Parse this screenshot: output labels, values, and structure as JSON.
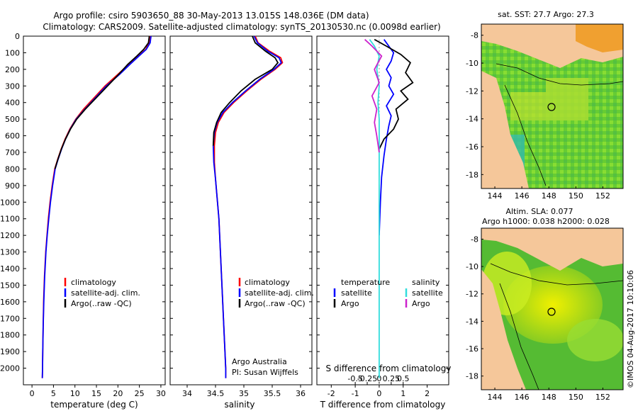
{
  "header": {
    "line1": "Argo profile: csiro 5903650_88 30-May-2013 13.015S 148.036E (DM data)",
    "line2": "Climatology: CARS2009. Satellite-adjusted climatology: synTS_20130530.nc (0.0098d earlier)"
  },
  "colors": {
    "climatology": "#ff0000",
    "satellite": "#0000ff",
    "argo": "#000000",
    "satellite_s": "#33dddd",
    "argo_s": "#cc22cc",
    "land": "#f5c79a"
  },
  "chart_data": [
    {
      "type": "line",
      "name": "temperature-panel",
      "xlabel": "temperature (deg C)",
      "ylabel": "",
      "xlim": [
        -2,
        31
      ],
      "ylim": [
        2100,
        0
      ],
      "xticks": [
        "0",
        "5",
        "10",
        "15",
        "20",
        "25",
        "30"
      ],
      "yticks": [
        "0",
        "100",
        "200",
        "300",
        "400",
        "500",
        "600",
        "700",
        "800",
        "900",
        "1000",
        "1100",
        "1200",
        "1300",
        "1400",
        "1500",
        "1600",
        "1700",
        "1800",
        "1900",
        "2000"
      ],
      "legend": [
        "climatology",
        "satellite-adj. clim.",
        "Argo(..raw -QC)"
      ],
      "series": [
        {
          "name": "climatology",
          "color": "climatology",
          "x": [
            27.5,
            27.2,
            26.5,
            24.8,
            22.5,
            20,
            17,
            14.5,
            12,
            10.2,
            8.8,
            7.7,
            6.8,
            6,
            5.3,
            4.7,
            4.2,
            3.8,
            3.5,
            3.2,
            2.9,
            2.7,
            2.6,
            2.5,
            2.45,
            2.4
          ],
          "y": [
            0,
            40,
            80,
            120,
            170,
            230,
            300,
            370,
            440,
            500,
            560,
            620,
            680,
            740,
            800,
            900,
            1000,
            1100,
            1200,
            1300,
            1450,
            1600,
            1750,
            1900,
            2000,
            2060
          ]
        },
        {
          "name": "satellite-adj. clim.",
          "color": "satellite",
          "x": [
            27.7,
            27.5,
            26.6,
            24.9,
            22.8,
            20.4,
            17.3,
            14.8,
            12.3,
            10.3,
            8.9,
            7.8,
            6.9,
            6.1,
            5.4,
            4.8,
            4.3,
            3.9,
            3.55,
            3.25,
            2.95,
            2.75,
            2.6,
            2.5,
            2.45,
            2.4
          ],
          "y": [
            0,
            40,
            80,
            120,
            170,
            230,
            300,
            370,
            440,
            500,
            560,
            620,
            680,
            740,
            800,
            900,
            1000,
            1100,
            1200,
            1300,
            1450,
            1600,
            1750,
            1900,
            2000,
            2060
          ]
        },
        {
          "name": "Argo(..raw -QC)",
          "color": "argo",
          "x": [
            27.3,
            27.1,
            26.0,
            24.4,
            22.3,
            20.2,
            17.6,
            15.0,
            12.4,
            10.4,
            8.95,
            7.8,
            6.85,
            6.05,
            5.35
          ],
          "y": [
            0,
            40,
            80,
            120,
            170,
            230,
            300,
            370,
            440,
            500,
            560,
            620,
            680,
            740,
            800
          ]
        }
      ]
    },
    {
      "type": "line",
      "name": "salinity-panel",
      "xlabel": "salinity",
      "xlim": [
        33.7,
        36.2
      ],
      "ylim": [
        2100,
        0
      ],
      "xticks": [
        "34",
        "34.5",
        "35",
        "35.5",
        "36"
      ],
      "legend": [
        "climatology",
        "satellite-adj. clim.",
        "Argo(..raw -QC)"
      ],
      "annotation": [
        "Argo Australia",
        "PI: Susan Wijffels"
      ],
      "series": [
        {
          "name": "climatology",
          "color": "climatology",
          "x": [
            35.2,
            35.25,
            35.45,
            35.65,
            35.68,
            35.55,
            35.3,
            35.05,
            34.82,
            34.65,
            34.55,
            34.5,
            34.48,
            34.48,
            34.5,
            34.53,
            34.56,
            34.58,
            34.6,
            34.62,
            34.64,
            34.66,
            34.68,
            34.68
          ],
          "y": [
            0,
            40,
            90,
            130,
            160,
            200,
            260,
            330,
            400,
            460,
            520,
            580,
            660,
            760,
            860,
            980,
            1100,
            1250,
            1400,
            1550,
            1700,
            1850,
            2000,
            2060
          ]
        },
        {
          "name": "satellite-adj. clim.",
          "color": "satellite",
          "x": [
            35.18,
            35.24,
            35.42,
            35.62,
            35.66,
            35.53,
            35.28,
            35.03,
            34.8,
            34.63,
            34.53,
            34.48,
            34.46,
            34.47,
            34.5,
            34.53,
            34.56,
            34.58,
            34.6,
            34.62,
            34.64,
            34.66,
            34.68,
            34.68
          ],
          "y": [
            0,
            40,
            90,
            130,
            160,
            200,
            260,
            330,
            400,
            460,
            520,
            580,
            660,
            760,
            860,
            980,
            1100,
            1250,
            1400,
            1550,
            1700,
            1850,
            2000,
            2060
          ]
        },
        {
          "name": "Argo(..raw -QC)",
          "color": "argo",
          "x": [
            35.15,
            35.2,
            35.38,
            35.55,
            35.6,
            35.5,
            35.2,
            34.95,
            34.75,
            34.6,
            34.52,
            34.47,
            34.46
          ],
          "y": [
            0,
            40,
            90,
            130,
            160,
            200,
            260,
            330,
            400,
            460,
            520,
            580,
            660
          ]
        }
      ]
    },
    {
      "type": "line",
      "name": "difference-panel",
      "xlabel": "T difference from climatology",
      "x2label": "S difference from climatology",
      "xlim": [
        -2.6,
        2.9
      ],
      "ylim": [
        2100,
        0
      ],
      "xticks": [
        "-2",
        "-1",
        "0",
        "1",
        "2"
      ],
      "x2ticks": [
        "-0.5",
        "-0.25",
        "0",
        "0.25",
        "0.5"
      ],
      "legend_left_title": "temperature",
      "legend_right_title": "salinity",
      "legend_left": [
        "satellite",
        "Argo"
      ],
      "legend_right": [
        "satellite",
        "Argo"
      ],
      "series": [
        {
          "name": "T satellite",
          "color": "satellite",
          "x": [
            0.2,
            0.4,
            0.6,
            0.5,
            0.3,
            0.5,
            0.4,
            0.6,
            0.3,
            0.5,
            0.4,
            0.3,
            0.2,
            0.1,
            0.05,
            0.0
          ],
          "y": [
            20,
            60,
            100,
            150,
            200,
            250,
            300,
            350,
            420,
            480,
            540,
            620,
            720,
            850,
            1000,
            1200
          ]
        },
        {
          "name": "T Argo",
          "color": "argo",
          "x": [
            -0.2,
            0.3,
            0.9,
            1.3,
            1.1,
            1.4,
            0.9,
            1.2,
            0.7,
            0.8,
            0.6,
            0.2,
            0.0
          ],
          "y": [
            20,
            60,
            110,
            160,
            220,
            280,
            330,
            380,
            440,
            500,
            560,
            620,
            680
          ]
        },
        {
          "name": "S satellite",
          "color": "satellite_s",
          "x": [
            -0.4,
            -0.2,
            0.0,
            -0.1,
            0.0,
            -0.05,
            0.0,
            0.0,
            0.0,
            0.0,
            0.0,
            0.0
          ],
          "y": [
            20,
            60,
            120,
            200,
            300,
            400,
            500,
            700,
            900,
            1200,
            1600,
            2060
          ]
        },
        {
          "name": "S Argo",
          "color": "argo_s",
          "x": [
            -0.6,
            -0.3,
            0.1,
            -0.2,
            0.0,
            -0.3,
            -0.1,
            -0.2,
            -0.1,
            0.0
          ],
          "y": [
            20,
            60,
            120,
            200,
            280,
            360,
            440,
            520,
            600,
            700
          ]
        }
      ]
    }
  ],
  "maps": {
    "top": {
      "title": "sat. SST: 27.7 Argo: 27.3",
      "xticks": [
        "144",
        "146",
        "148",
        "150",
        "152"
      ],
      "yticks": [
        "-8",
        "-10",
        "-12",
        "-14",
        "-16",
        "-18"
      ]
    },
    "bottom": {
      "title1": "Altim. SLA: 0.077",
      "title2": "Argo h1000: 0.038 h2000: 0.028",
      "xticks": [
        "144",
        "146",
        "148",
        "150",
        "152"
      ],
      "yticks": [
        "-8",
        "-10",
        "-12",
        "-14",
        "-16",
        "-18"
      ]
    },
    "credit": "©IMOS 04-Aug-2017 10:10:06"
  }
}
